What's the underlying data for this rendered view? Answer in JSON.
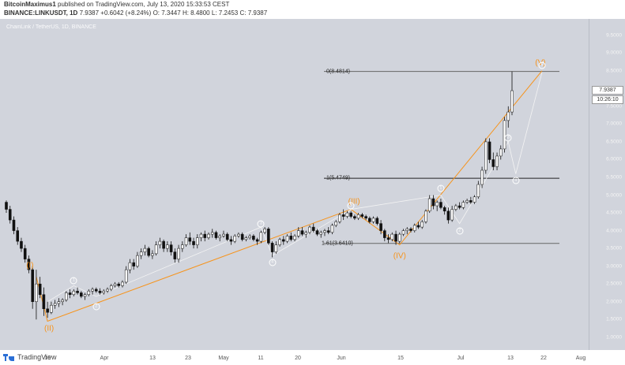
{
  "header": {
    "author": "BitcoinMaximus1",
    "published_text": "published on TradingView.com, July 13, 2020 15:33:53 CEST",
    "symbol": "BINANCE:LINKUSDT, 1D",
    "last": "7.9387",
    "change": "+0.6042 (+8.24%)",
    "open": "O: 7.3447",
    "high": "H: 8.4800",
    "low": "L: 7.2453",
    "close": "C: 7.9387"
  },
  "chart_title": "ChainLink / TetherUS, 1D, BINANCE",
  "footer": {
    "brand": "TradingView"
  },
  "colors": {
    "background": "#d1d4dc",
    "bull": "#ffffff",
    "bear": "#111111",
    "wave": "#f7931a",
    "fib": "#555555"
  },
  "chart_data": {
    "type": "candlestick",
    "title": "ChainLink / TetherUS, 1D, BINANCE",
    "ylim": [
      0.64,
      9.96
    ],
    "y_ticks": [
      "9.5000",
      "9.0000",
      "8.5000",
      "8.0000",
      "7.5000",
      "7.0000",
      "6.5000",
      "6.0000",
      "5.5000",
      "5.0000",
      "4.5000",
      "4.0000",
      "3.5000",
      "3.0000",
      "2.5000",
      "2.0000",
      "1.5000",
      "1.0000"
    ],
    "x_ticks": [
      "16",
      "Apr",
      "13",
      "23",
      "May",
      "11",
      "20",
      "Jun",
      "15",
      "Jul",
      "13",
      "22",
      "Aug"
    ],
    "last_price": "7.9387",
    "countdown": "10:26:10",
    "fib_levels": [
      {
        "label": "0(8.4814)",
        "value": 8.4814
      },
      {
        "label": "1(5.4749)",
        "value": 5.4749
      },
      {
        "label": "1.61(3.6410)",
        "value": 3.641
      }
    ],
    "waves": [
      {
        "label": "(I)",
        "value": 2.7
      },
      {
        "label": "(II)",
        "value": 1.45
      },
      {
        "label": "(III)",
        "value": 4.6
      },
      {
        "label": "(IV)",
        "value": 3.6
      },
      {
        "label": "(V)",
        "value": 8.5
      }
    ],
    "subwaves": [
      "1",
      "2",
      "3",
      "4",
      "5",
      "1",
      "2",
      "3",
      "4",
      "5"
    ],
    "candles": [
      [
        4.8,
        4.85,
        4.5,
        4.6
      ],
      [
        4.6,
        4.7,
        4.2,
        4.3
      ],
      [
        4.3,
        4.4,
        3.9,
        4.0
      ],
      [
        4.0,
        4.1,
        3.6,
        3.7
      ],
      [
        3.7,
        3.8,
        3.4,
        3.5
      ],
      [
        3.5,
        3.6,
        3.1,
        3.2
      ],
      [
        3.2,
        3.3,
        2.8,
        2.9
      ],
      [
        2.9,
        3.0,
        1.8,
        2.0
      ],
      [
        2.0,
        2.9,
        1.5,
        2.5
      ],
      [
        2.5,
        2.7,
        2.1,
        2.2
      ],
      [
        2.2,
        2.4,
        1.6,
        1.8
      ],
      [
        1.8,
        2.0,
        1.55,
        1.7
      ],
      [
        1.7,
        2.0,
        1.65,
        1.9
      ],
      [
        1.9,
        2.05,
        1.8,
        1.95
      ],
      [
        1.95,
        2.1,
        1.85,
        2.0
      ],
      [
        2.0,
        2.1,
        1.9,
        2.05
      ],
      [
        2.05,
        2.3,
        2.0,
        2.25
      ],
      [
        2.25,
        2.35,
        2.1,
        2.2
      ],
      [
        2.2,
        2.35,
        2.15,
        2.3
      ],
      [
        2.3,
        2.4,
        2.2,
        2.25
      ],
      [
        2.25,
        2.3,
        2.1,
        2.15
      ],
      [
        2.15,
        2.25,
        2.05,
        2.2
      ],
      [
        2.2,
        2.35,
        2.15,
        2.3
      ],
      [
        2.3,
        2.4,
        2.2,
        2.35
      ],
      [
        2.35,
        2.4,
        2.25,
        2.3
      ],
      [
        2.3,
        2.38,
        2.2,
        2.25
      ],
      [
        2.25,
        2.35,
        2.2,
        2.3
      ],
      [
        2.3,
        2.4,
        2.25,
        2.35
      ],
      [
        2.35,
        2.5,
        2.3,
        2.45
      ],
      [
        2.45,
        2.55,
        2.4,
        2.5
      ],
      [
        2.5,
        2.55,
        2.4,
        2.45
      ],
      [
        2.45,
        2.6,
        2.4,
        2.55
      ],
      [
        2.55,
        3.0,
        2.5,
        2.9
      ],
      [
        2.9,
        3.2,
        2.8,
        3.1
      ],
      [
        3.1,
        3.2,
        2.9,
        3.0
      ],
      [
        3.0,
        3.4,
        2.95,
        3.3
      ],
      [
        3.3,
        3.5,
        3.2,
        3.4
      ],
      [
        3.4,
        3.6,
        3.3,
        3.5
      ],
      [
        3.5,
        3.55,
        3.25,
        3.3
      ],
      [
        3.3,
        3.45,
        3.2,
        3.35
      ],
      [
        3.35,
        3.7,
        3.3,
        3.6
      ],
      [
        3.6,
        3.8,
        3.5,
        3.7
      ],
      [
        3.7,
        3.75,
        3.4,
        3.5
      ],
      [
        3.5,
        3.7,
        3.4,
        3.6
      ],
      [
        3.6,
        3.7,
        3.3,
        3.4
      ],
      [
        3.4,
        3.5,
        3.1,
        3.2
      ],
      [
        3.2,
        3.6,
        3.1,
        3.5
      ],
      [
        3.5,
        3.7,
        3.4,
        3.6
      ],
      [
        3.6,
        3.9,
        3.55,
        3.8
      ],
      [
        3.8,
        3.95,
        3.6,
        3.7
      ],
      [
        3.7,
        3.8,
        3.5,
        3.6
      ],
      [
        3.6,
        3.9,
        3.5,
        3.8
      ],
      [
        3.8,
        3.95,
        3.7,
        3.9
      ],
      [
        3.9,
        4.0,
        3.7,
        3.8
      ],
      [
        3.8,
        3.95,
        3.75,
        3.9
      ],
      [
        3.9,
        4.05,
        3.8,
        3.95
      ],
      [
        3.95,
        4.0,
        3.75,
        3.8
      ],
      [
        3.8,
        3.9,
        3.7,
        3.85
      ],
      [
        3.85,
        4.0,
        3.8,
        3.9
      ],
      [
        3.9,
        3.95,
        3.7,
        3.75
      ],
      [
        3.75,
        3.85,
        3.6,
        3.7
      ],
      [
        3.7,
        3.9,
        3.65,
        3.85
      ],
      [
        3.85,
        3.95,
        3.8,
        3.9
      ],
      [
        3.9,
        3.95,
        3.7,
        3.75
      ],
      [
        3.75,
        3.85,
        3.7,
        3.8
      ],
      [
        3.8,
        3.9,
        3.75,
        3.85
      ],
      [
        3.85,
        3.9,
        3.7,
        3.75
      ],
      [
        3.75,
        3.8,
        3.6,
        3.7
      ],
      [
        3.7,
        4.0,
        3.65,
        3.95
      ],
      [
        3.95,
        4.1,
        3.9,
        4.05
      ],
      [
        4.05,
        4.1,
        3.6,
        3.65
      ],
      [
        3.65,
        3.7,
        3.25,
        3.4
      ],
      [
        3.4,
        3.7,
        3.35,
        3.6
      ],
      [
        3.6,
        3.8,
        3.55,
        3.75
      ],
      [
        3.75,
        3.85,
        3.6,
        3.7
      ],
      [
        3.7,
        3.9,
        3.65,
        3.85
      ],
      [
        3.85,
        3.95,
        3.7,
        3.75
      ],
      [
        3.75,
        3.9,
        3.7,
        3.85
      ],
      [
        3.85,
        4.1,
        3.8,
        4.0
      ],
      [
        4.0,
        4.1,
        3.85,
        3.9
      ],
      [
        3.9,
        4.0,
        3.8,
        3.95
      ],
      [
        3.95,
        4.15,
        3.9,
        4.1
      ],
      [
        4.1,
        4.2,
        3.95,
        4.0
      ],
      [
        4.0,
        4.05,
        3.85,
        3.9
      ],
      [
        3.9,
        4.0,
        3.8,
        3.95
      ],
      [
        3.95,
        4.05,
        3.85,
        4.0
      ],
      [
        4.0,
        4.1,
        3.9,
        3.95
      ],
      [
        3.95,
        4.2,
        3.9,
        4.15
      ],
      [
        4.15,
        4.3,
        4.1,
        4.25
      ],
      [
        4.25,
        4.5,
        4.2,
        4.45
      ],
      [
        4.45,
        4.6,
        4.3,
        4.4
      ],
      [
        4.4,
        4.55,
        4.35,
        4.5
      ],
      [
        4.5,
        4.55,
        4.35,
        4.4
      ],
      [
        4.4,
        4.45,
        4.3,
        4.35
      ],
      [
        4.35,
        4.5,
        4.3,
        4.45
      ],
      [
        4.45,
        4.5,
        4.35,
        4.4
      ],
      [
        4.4,
        4.45,
        4.3,
        4.35
      ],
      [
        4.35,
        4.4,
        4.2,
        4.25
      ],
      [
        4.25,
        4.4,
        4.2,
        4.35
      ],
      [
        4.35,
        4.4,
        4.15,
        4.2
      ],
      [
        4.2,
        4.3,
        3.9,
        4.0
      ],
      [
        4.0,
        4.05,
        3.7,
        3.8
      ],
      [
        3.8,
        3.9,
        3.65,
        3.75
      ],
      [
        3.75,
        3.95,
        3.7,
        3.9
      ],
      [
        3.9,
        4.0,
        3.6,
        3.7
      ],
      [
        3.7,
        3.95,
        3.65,
        3.9
      ],
      [
        3.9,
        4.05,
        3.85,
        4.0
      ],
      [
        4.0,
        4.1,
        3.9,
        4.05
      ],
      [
        4.05,
        4.1,
        3.95,
        4.0
      ],
      [
        4.0,
        4.2,
        3.95,
        4.15
      ],
      [
        4.15,
        4.25,
        4.05,
        4.1
      ],
      [
        4.1,
        4.3,
        4.05,
        4.25
      ],
      [
        4.25,
        4.6,
        4.2,
        4.55
      ],
      [
        4.55,
        5.0,
        4.5,
        4.9
      ],
      [
        4.9,
        5.0,
        4.6,
        4.7
      ],
      [
        4.7,
        4.85,
        4.55,
        4.8
      ],
      [
        4.8,
        4.9,
        4.6,
        4.65
      ],
      [
        4.65,
        4.7,
        4.45,
        4.55
      ],
      [
        4.55,
        4.65,
        4.2,
        4.3
      ],
      [
        4.3,
        4.7,
        4.25,
        4.6
      ],
      [
        4.6,
        4.75,
        4.55,
        4.7
      ],
      [
        4.7,
        4.8,
        4.6,
        4.65
      ],
      [
        4.65,
        4.85,
        4.6,
        4.8
      ],
      [
        4.8,
        4.9,
        4.75,
        4.85
      ],
      [
        4.85,
        4.95,
        4.75,
        4.8
      ],
      [
        4.8,
        5.0,
        4.75,
        4.95
      ],
      [
        4.95,
        5.4,
        4.9,
        5.3
      ],
      [
        5.3,
        5.8,
        5.2,
        5.7
      ],
      [
        5.7,
        6.6,
        5.6,
        6.5
      ],
      [
        6.5,
        6.6,
        5.9,
        6.0
      ],
      [
        6.0,
        6.2,
        5.7,
        5.8
      ],
      [
        5.8,
        6.2,
        5.7,
        6.1
      ],
      [
        6.1,
        6.4,
        6.0,
        6.3
      ],
      [
        6.3,
        7.2,
        6.2,
        7.1
      ],
      [
        7.1,
        7.5,
        6.9,
        7.34
      ],
      [
        7.34,
        8.48,
        7.25,
        7.94
      ]
    ]
  }
}
